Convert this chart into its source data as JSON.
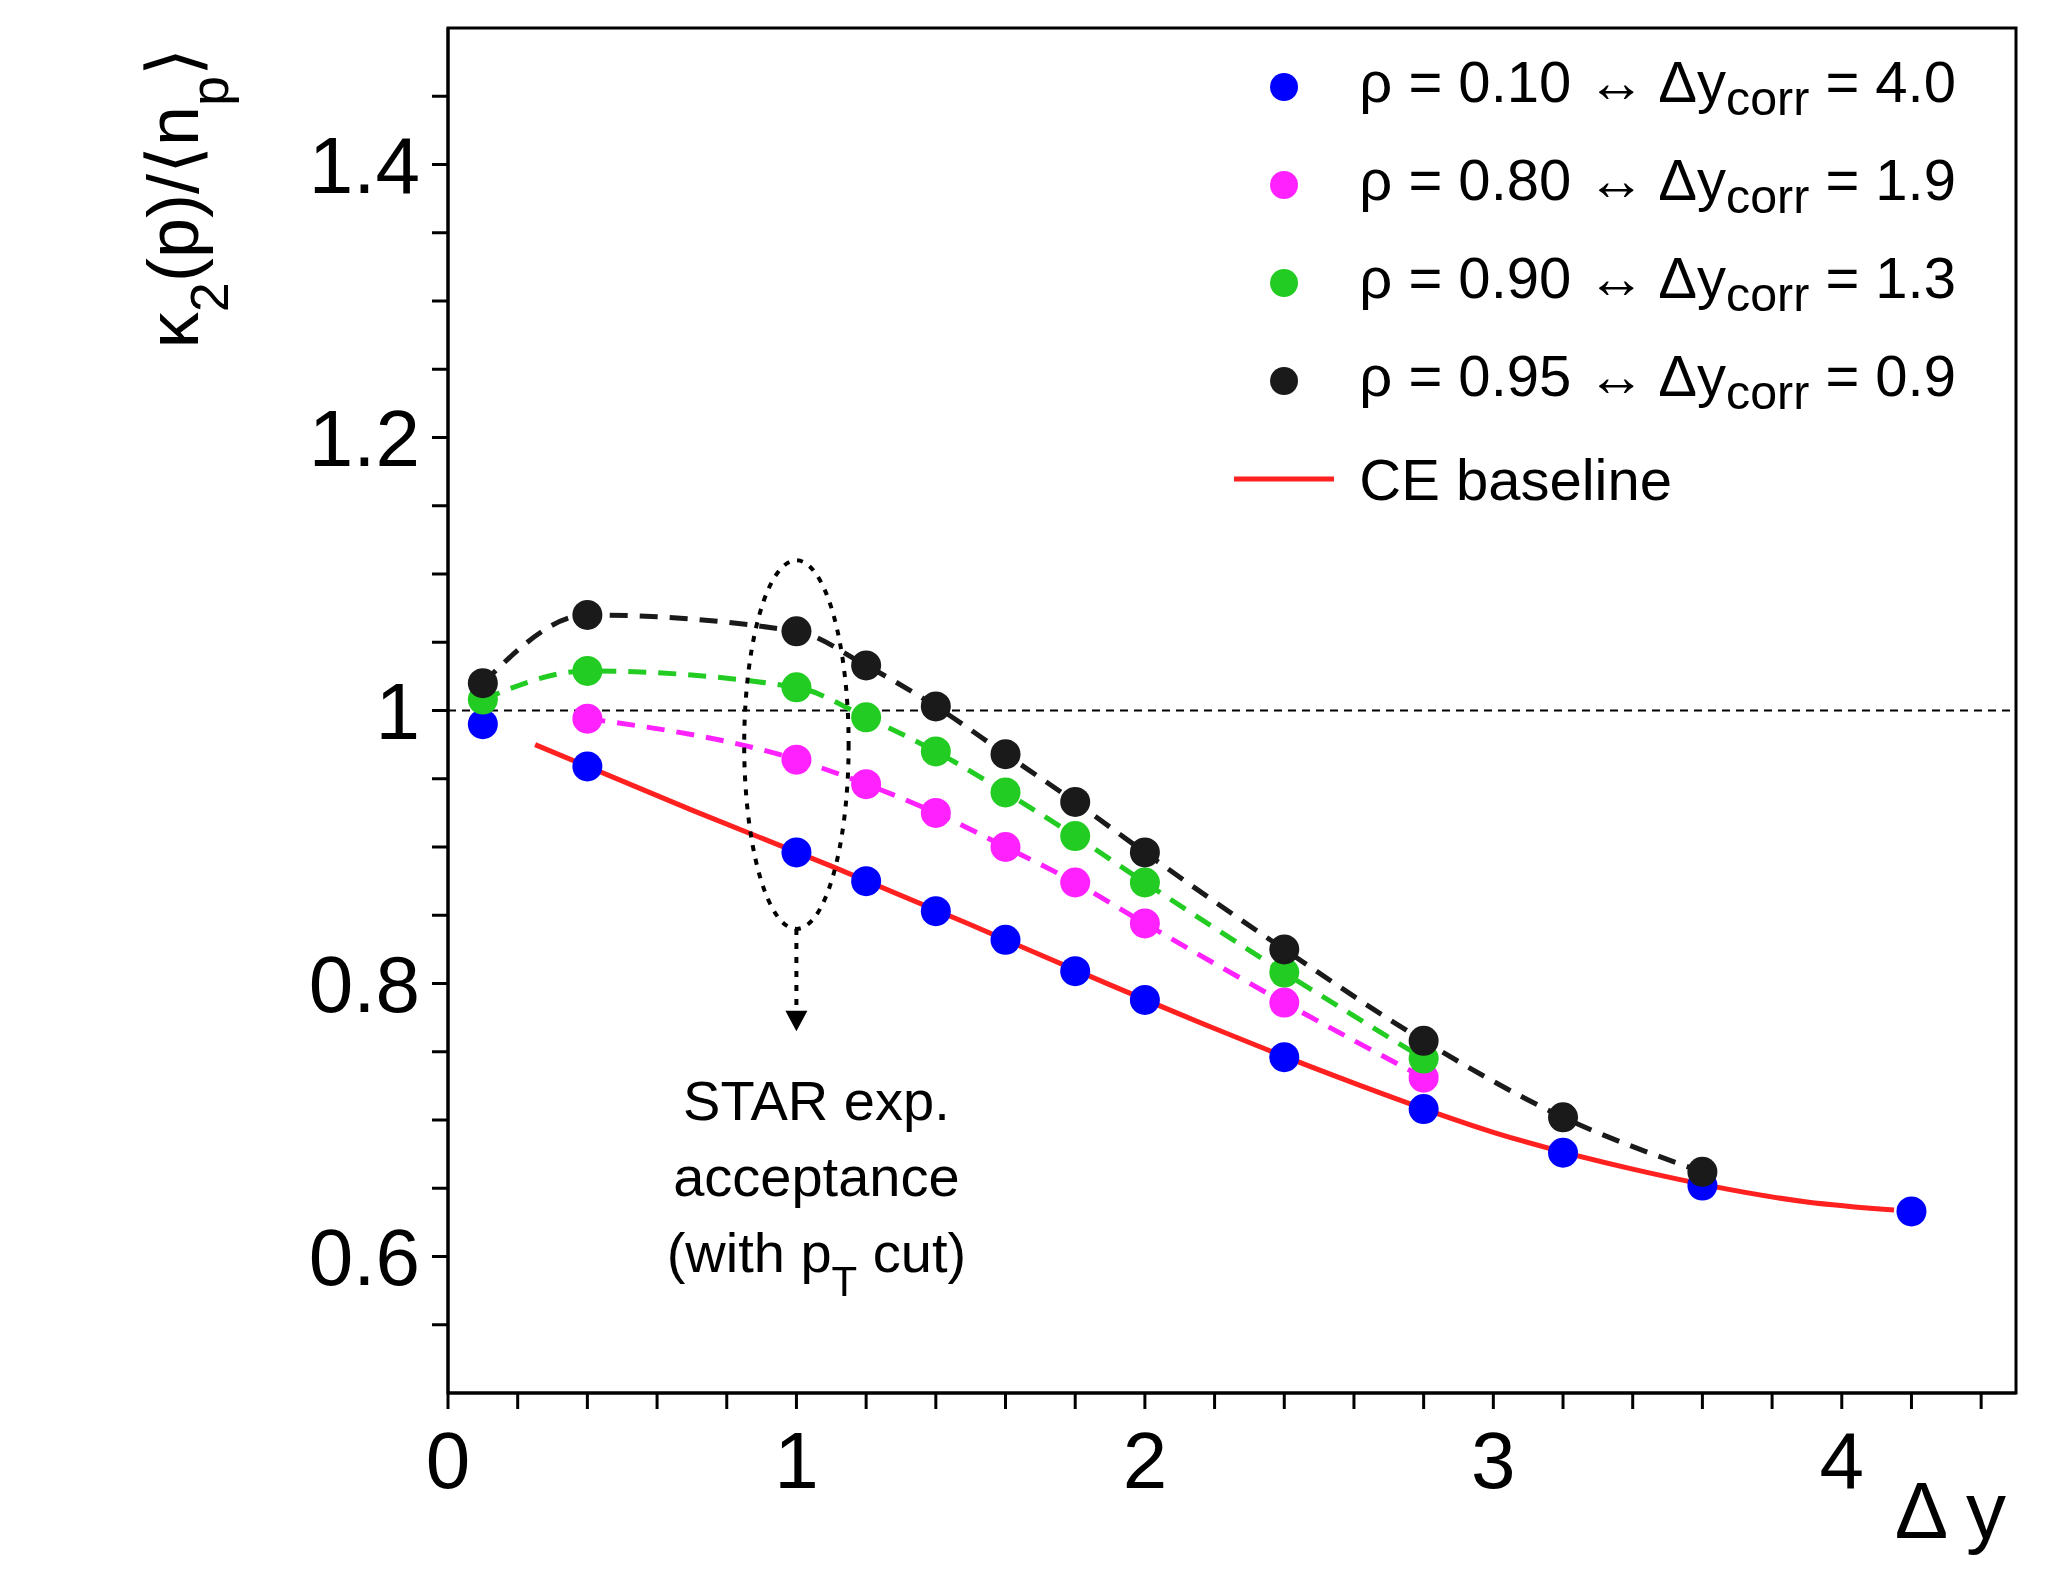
{
  "chart_data": {
    "type": "line",
    "xlabel": "Δ y",
    "ylabel": "κ$_{2}$(p)/⟨n$_{p}$⟩",
    "x": [
      0.1,
      0.4,
      1.0,
      1.2,
      1.4,
      1.6,
      1.8,
      2.0,
      2.4,
      2.8,
      3.2,
      3.6,
      4.2
    ],
    "series": [
      {
        "name": "ρ = 0.10  ↔  Δy$_{corr}$ = 4.0",
        "type": "scatter",
        "color": "#0000ff",
        "values": [
          0.99,
          0.959,
          0.896,
          0.875,
          0.853,
          0.832,
          0.809,
          0.788,
          0.746,
          0.708,
          0.676,
          0.652,
          0.633
        ]
      },
      {
        "name": "ρ = 0.80  ↔  Δy$_{corr}$ = 1.9",
        "color": "#ff22ff",
        "line_style": "dashed",
        "marker": "circle",
        "values": [
          null,
          0.994,
          0.964,
          0.946,
          0.925,
          0.9,
          0.874,
          0.844,
          0.786,
          0.731,
          null,
          null,
          null
        ]
      },
      {
        "name": "ρ = 0.90  ↔  Δy$_{corr}$ = 1.3",
        "color": "#22cc22",
        "line_style": "dashed",
        "marker": "circle",
        "values": [
          1.008,
          1.029,
          1.017,
          0.995,
          0.97,
          0.94,
          0.908,
          0.874,
          0.808,
          0.745,
          null,
          null,
          null
        ]
      },
      {
        "name": "ρ = 0.95  ↔  Δy$_{corr}$ = 0.9",
        "color": "#1a1a1a",
        "line_style": "dashed",
        "marker": "circle",
        "values": [
          1.02,
          1.07,
          1.058,
          1.033,
          1.003,
          0.968,
          0.933,
          0.896,
          0.825,
          0.758,
          0.702,
          0.662,
          null
        ]
      },
      {
        "name": "CE baseline",
        "color": "#ff2020",
        "line_style": "solid",
        "marker": "none",
        "x": [
          0.25,
          0.7,
          1.1,
          1.5,
          1.9,
          2.2,
          2.6,
          3.0,
          3.4,
          3.9,
          4.15
        ],
        "values": [
          0.975,
          0.927,
          0.886,
          0.843,
          0.799,
          0.767,
          0.727,
          0.691,
          0.664,
          0.64,
          0.634
        ]
      }
    ],
    "xlim": [
      0,
      4.5
    ],
    "xticks": [
      0,
      {
        "value": 0.2,
        "label": null
      },
      {
        "value": 0.4,
        "label": null
      },
      {
        "value": 0.6,
        "label": null
      },
      {
        "value": 0.8,
        "label": null
      },
      1,
      {
        "value": 1.2,
        "label": null
      },
      {
        "value": 1.4,
        "label": null
      },
      {
        "value": 1.6,
        "label": null
      },
      {
        "value": 1.8,
        "label": null
      },
      2,
      {
        "value": 2.2,
        "label": null
      },
      {
        "value": 2.4,
        "label": null
      },
      {
        "value": 2.6,
        "label": null
      },
      {
        "value": 2.8,
        "label": null
      },
      3,
      {
        "value": 3.2,
        "label": null
      },
      {
        "value": 3.4,
        "label": null
      },
      {
        "value": 3.6,
        "label": null
      },
      {
        "value": 3.8,
        "label": null
      },
      4,
      {
        "value": 4.2,
        "label": null
      },
      {
        "value": 4.4,
        "label": null
      }
    ],
    "ylim": [
      0.5,
      1.5
    ],
    "yticks": [
      {
        "value": 0.55,
        "label": null
      },
      0.6,
      {
        "value": 0.65,
        "label": null
      },
      {
        "value": 0.7,
        "label": null
      },
      {
        "value": 0.75,
        "label": null
      },
      0.8,
      {
        "value": 0.85,
        "label": null
      },
      {
        "value": 0.9,
        "label": null
      },
      {
        "value": 0.95,
        "label": null
      },
      1,
      {
        "value": 1.05,
        "label": null
      },
      {
        "value": 1.1,
        "label": null
      },
      {
        "value": 1.15,
        "label": null
      },
      1.2,
      {
        "value": 1.25,
        "label": null
      },
      {
        "value": 1.3,
        "label": null
      },
      {
        "value": 1.35,
        "label": null
      },
      1.4,
      {
        "value": 1.45,
        "label": null
      }
    ],
    "ref_lines": [
      {
        "axis": "y",
        "value": 1,
        "color": "#000000",
        "line_style": "dashed"
      }
    ],
    "annotations": [
      "STAR exp.\nacceptance\n(with p$_{T}$ cut)"
    ],
    "legend": "top right"
  }
}
